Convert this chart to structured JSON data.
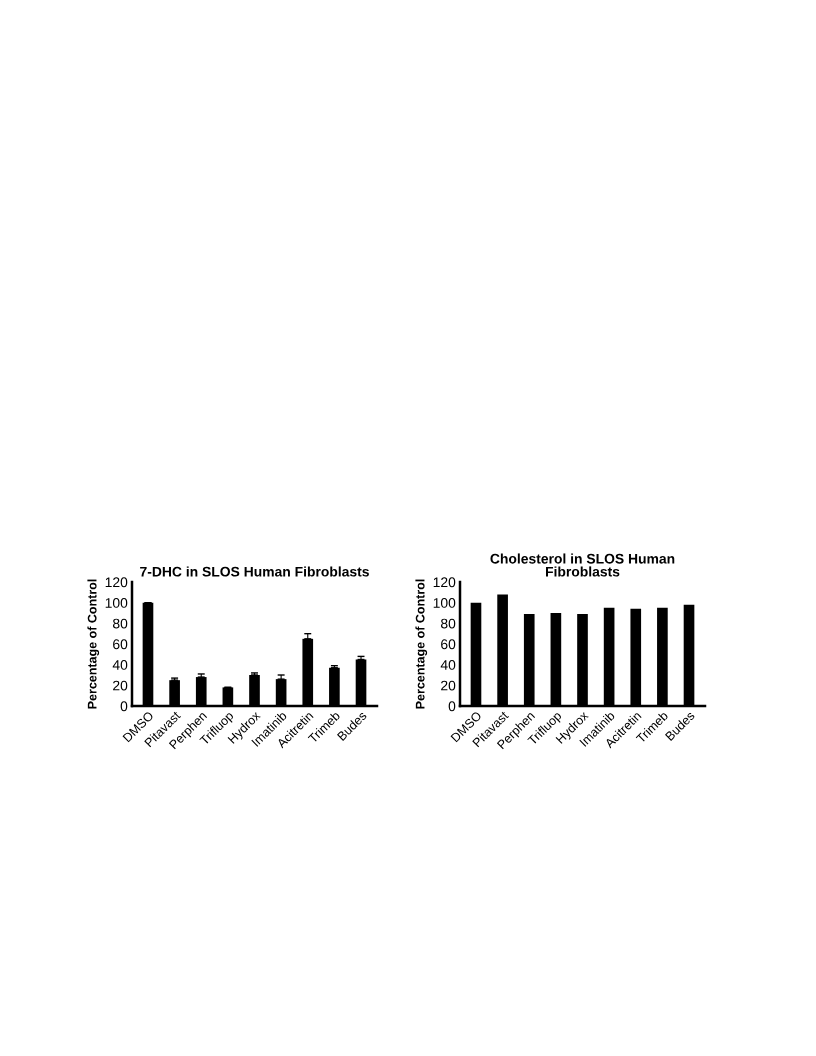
{
  "chart_data": [
    {
      "type": "bar",
      "title": "7-DHC in SLOS Human Fibroblasts",
      "ylabel": "Percentage of Control",
      "categories": [
        "DMSO",
        "Pitavast",
        "Perphen",
        "Trifluop",
        "Hydrox",
        "Imatinib",
        "Acitretin",
        "Trimeb",
        "Budes"
      ],
      "values": [
        100,
        25,
        28,
        18,
        30,
        26,
        65,
        37,
        45
      ],
      "errors": [
        null,
        2,
        3,
        null,
        2,
        4,
        5,
        2,
        3
      ],
      "color": "#000000",
      "ylim": [
        0,
        120
      ],
      "yticks": [
        0,
        20,
        40,
        60,
        80,
        100,
        120
      ],
      "grid": false,
      "legend": false
    },
    {
      "type": "bar",
      "title": "Cholesterol in SLOS Human Fibroblasts",
      "ylabel": "Percentage of Control",
      "categories": [
        "DMSO",
        "Pitavast",
        "Perphen",
        "Trifluop",
        "Hydrox",
        "Imatinib",
        "Acitretin",
        "Trimeb",
        "Budes"
      ],
      "values": [
        100,
        108,
        89,
        90,
        89,
        95,
        94,
        95,
        98
      ],
      "color": "#000000",
      "ylim": [
        0,
        120
      ],
      "yticks": [
        0,
        20,
        40,
        60,
        80,
        100,
        120
      ],
      "grid": false,
      "legend": false
    }
  ]
}
